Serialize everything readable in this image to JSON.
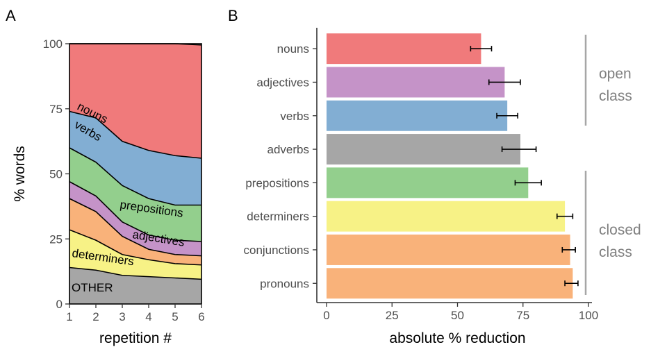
{
  "panel_a": {
    "letter": "A"
  },
  "panel_b": {
    "letter": "B"
  },
  "chart_data": [
    {
      "type": "area",
      "stacked": true,
      "x": [
        1,
        2,
        3,
        4,
        5,
        6
      ],
      "xlabel": "repetition #",
      "ylabel": "% words",
      "xlim": [
        1,
        6
      ],
      "ylim": [
        0,
        100
      ],
      "x_ticks": [
        "1",
        "2",
        "3",
        "4",
        "5",
        "6"
      ],
      "y_ticks": [
        "0",
        "25",
        "50",
        "75",
        "100"
      ],
      "series": [
        {
          "name": "OTHER",
          "color": "#a6a6a6",
          "values": [
            14,
            13,
            11,
            10.5,
            10,
            9.5
          ]
        },
        {
          "name": "determiners",
          "color": "#f7f286",
          "values": [
            14.5,
            11.5,
            8,
            6.5,
            5.5,
            5.5
          ]
        },
        {
          "name": "",
          "color": "#f9b27a",
          "values": [
            12,
            11,
            7,
            4,
            3.5,
            3.5
          ]
        },
        {
          "name": "adjectives",
          "color": "#c593c8",
          "values": [
            6.5,
            6,
            5.5,
            5.5,
            5.5,
            5.5
          ]
        },
        {
          "name": "prepositions",
          "color": "#93cf8d",
          "values": [
            13,
            13,
            14,
            14,
            13.5,
            14
          ]
        },
        {
          "name": "verbs",
          "color": "#82aed3",
          "values": [
            14,
            17,
            17,
            18.5,
            19,
            18
          ]
        },
        {
          "name": "nouns",
          "color": "#f07a7b",
          "values": [
            26,
            28.5,
            37.5,
            41,
            43,
            43.5
          ]
        }
      ]
    },
    {
      "type": "bar",
      "orientation": "horizontal",
      "categories": [
        "nouns",
        "adjectives",
        "verbs",
        "adverbs",
        "prepositions",
        "determiners",
        "conjunctions",
        "pronouns"
      ],
      "values": [
        59,
        68,
        69,
        74,
        77,
        91,
        93,
        94
      ],
      "error_low": [
        55,
        62,
        65,
        67,
        72,
        88,
        90,
        91
      ],
      "error_high": [
        63,
        74,
        73,
        80,
        82,
        94,
        95,
        96
      ],
      "colors": [
        "#f07a7b",
        "#c593c8",
        "#82aed3",
        "#a6a6a6",
        "#93cf8d",
        "#f7f286",
        "#f9b27a",
        "#f9b27a"
      ],
      "xlabel": "absolute % reduction",
      "ylabel": "",
      "xlim": [
        0,
        100
      ],
      "x_ticks": [
        "0",
        "25",
        "50",
        "75",
        "100"
      ],
      "groups": [
        {
          "label_lines": [
            "open",
            "class"
          ],
          "categories": [
            "nouns",
            "adjectives",
            "verbs",
            "adverbs"
          ]
        },
        {
          "label_lines": [
            "closed",
            "class"
          ],
          "categories": [
            "prepositions",
            "determiners",
            "conjunctions",
            "pronouns"
          ]
        }
      ]
    }
  ]
}
